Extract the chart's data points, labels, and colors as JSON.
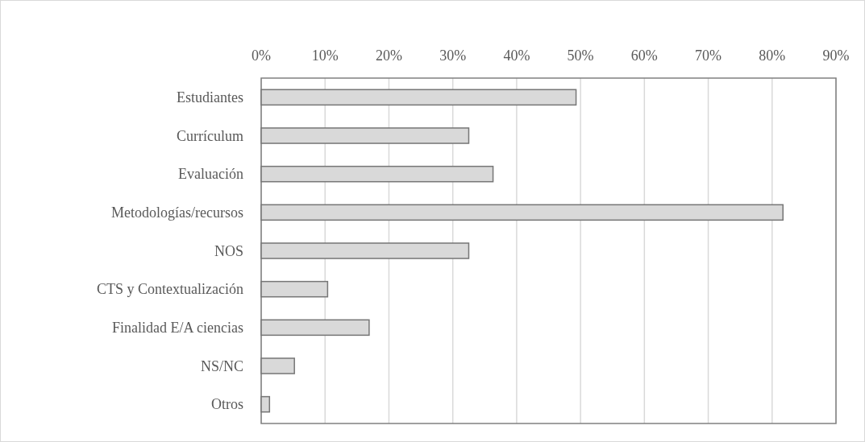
{
  "chart_data": {
    "type": "bar",
    "orientation": "horizontal",
    "categories": [
      "Estudiantes",
      "Currículum",
      "Evaluación",
      "Metodologías/recursos",
      "NOS",
      "CTS y Contextualización",
      "Finalidad E/A ciencias",
      "NS/NC",
      "Otros"
    ],
    "values": [
      49.3,
      32.5,
      36.3,
      81.7,
      32.5,
      10.4,
      16.9,
      5.2,
      1.3
    ],
    "color": "#d9d9d9",
    "xlim": [
      0,
      90
    ],
    "xticks": [
      {
        "value": 0,
        "label": "0%"
      },
      {
        "value": 10,
        "label": "10%"
      },
      {
        "value": 20,
        "label": "20%"
      },
      {
        "value": 30,
        "label": "30%"
      },
      {
        "value": 40,
        "label": "40%"
      },
      {
        "value": 50,
        "label": "50%"
      },
      {
        "value": 60,
        "label": "60%"
      },
      {
        "value": 70,
        "label": "70%"
      },
      {
        "value": 80,
        "label": "80%"
      },
      {
        "value": 90,
        "label": "90%"
      }
    ],
    "grid": "x"
  }
}
